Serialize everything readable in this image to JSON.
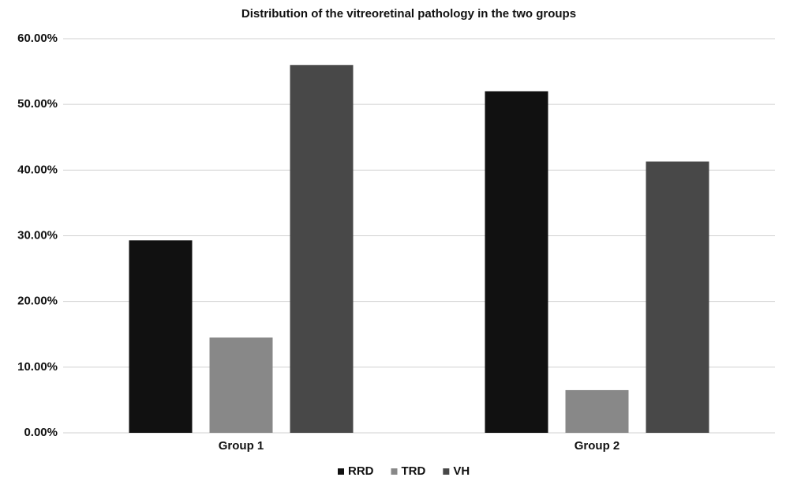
{
  "chart_data": {
    "type": "bar",
    "title": "Distribution of the vitreoretinal pathology in the two groups",
    "categories": [
      "Group 1",
      "Group 2"
    ],
    "series": [
      {
        "name": "RRD",
        "color": "#111111",
        "values": [
          29.3,
          52.0
        ]
      },
      {
        "name": "TRD",
        "color": "#888888",
        "values": [
          14.5,
          6.5
        ]
      },
      {
        "name": "VH",
        "color": "#484848",
        "values": [
          56.0,
          41.3
        ]
      }
    ],
    "ylim": [
      0,
      60
    ],
    "yticks": [
      {
        "value": 0,
        "label": "0.00%"
      },
      {
        "value": 10,
        "label": "10.00%"
      },
      {
        "value": 20,
        "label": "20.00%"
      },
      {
        "value": 30,
        "label": "30.00%"
      },
      {
        "value": 40,
        "label": "40.00%"
      },
      {
        "value": 50,
        "label": "50.00%"
      },
      {
        "value": 60,
        "label": "60.00%"
      }
    ],
    "grid": true,
    "legend": "bottom"
  }
}
